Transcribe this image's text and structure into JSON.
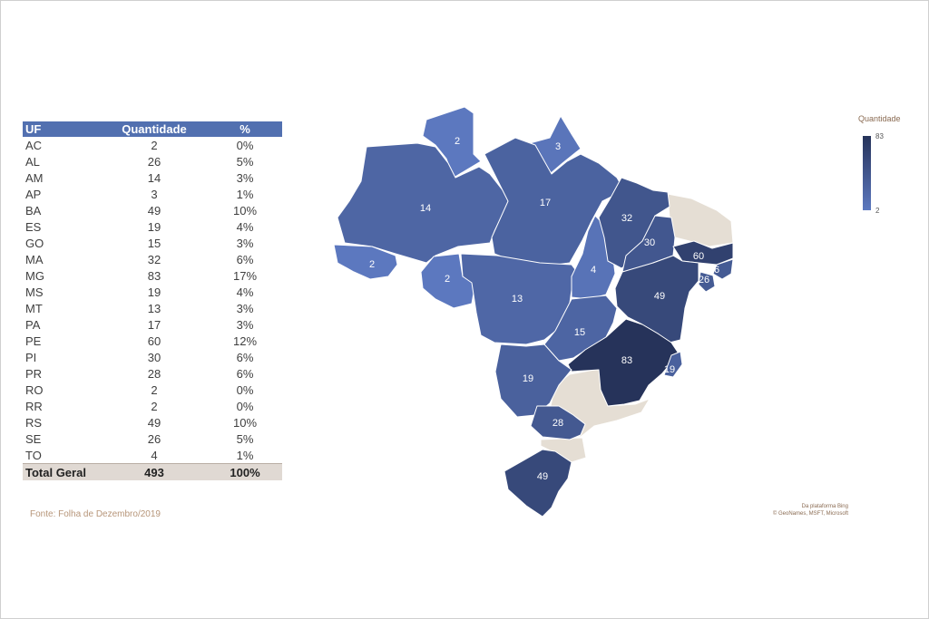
{
  "table": {
    "headers": {
      "uf": "UF",
      "quantidade": "Quantidade",
      "pct": "%"
    },
    "rows": [
      {
        "uf": "AC",
        "q": "2",
        "p": "0%"
      },
      {
        "uf": "AL",
        "q": "26",
        "p": "5%"
      },
      {
        "uf": "AM",
        "q": "14",
        "p": "3%"
      },
      {
        "uf": "AP",
        "q": "3",
        "p": "1%"
      },
      {
        "uf": "BA",
        "q": "49",
        "p": "10%"
      },
      {
        "uf": "ES",
        "q": "19",
        "p": "4%"
      },
      {
        "uf": "GO",
        "q": "15",
        "p": "3%"
      },
      {
        "uf": "MA",
        "q": "32",
        "p": "6%"
      },
      {
        "uf": "MG",
        "q": "83",
        "p": "17%"
      },
      {
        "uf": "MS",
        "q": "19",
        "p": "4%"
      },
      {
        "uf": "MT",
        "q": "13",
        "p": "3%"
      },
      {
        "uf": "PA",
        "q": "17",
        "p": "3%"
      },
      {
        "uf": "PE",
        "q": "60",
        "p": "12%"
      },
      {
        "uf": "PI",
        "q": "30",
        "p": "6%"
      },
      {
        "uf": "PR",
        "q": "28",
        "p": "6%"
      },
      {
        "uf": "RO",
        "q": "2",
        "p": "0%"
      },
      {
        "uf": "RR",
        "q": "2",
        "p": "0%"
      },
      {
        "uf": "RS",
        "q": "49",
        "p": "10%"
      },
      {
        "uf": "SE",
        "q": "26",
        "p": "5%"
      },
      {
        "uf": "TO",
        "q": "4",
        "p": "1%"
      }
    ],
    "total": {
      "label": "Total Geral",
      "q": "493",
      "p": "100%"
    }
  },
  "source": "Fonte: Folha de Dezembro/2019",
  "legend": {
    "title": "Quantidade",
    "max": "83",
    "min": "2"
  },
  "credits": {
    "line1": "Da plataforma Bing",
    "line2": "© GeoNames, MSFT, Microsoft"
  },
  "colors": {
    "min": "#5c78bf",
    "max": "#26335a",
    "no_data": "#e5ded4",
    "header": "#5270b0"
  },
  "map": {
    "states": [
      {
        "uf": "RR",
        "label": "2"
      },
      {
        "uf": "AP",
        "label": "3"
      },
      {
        "uf": "AM",
        "label": "14"
      },
      {
        "uf": "PA",
        "label": "17"
      },
      {
        "uf": "AC",
        "label": "2"
      },
      {
        "uf": "RO",
        "label": "2"
      },
      {
        "uf": "MT",
        "label": "13"
      },
      {
        "uf": "TO",
        "label": "4"
      },
      {
        "uf": "MA",
        "label": "32"
      },
      {
        "uf": "PI",
        "label": "30"
      },
      {
        "uf": "PE",
        "label": "60"
      },
      {
        "uf": "AL",
        "label": "26"
      },
      {
        "uf": "SE",
        "label": "26"
      },
      {
        "uf": "BA",
        "label": "49"
      },
      {
        "uf": "GO",
        "label": "15"
      },
      {
        "uf": "MG",
        "label": "83"
      },
      {
        "uf": "ES",
        "label": "19"
      },
      {
        "uf": "MS",
        "label": "19"
      },
      {
        "uf": "PR",
        "label": "28"
      },
      {
        "uf": "RS",
        "label": "49"
      }
    ]
  }
}
